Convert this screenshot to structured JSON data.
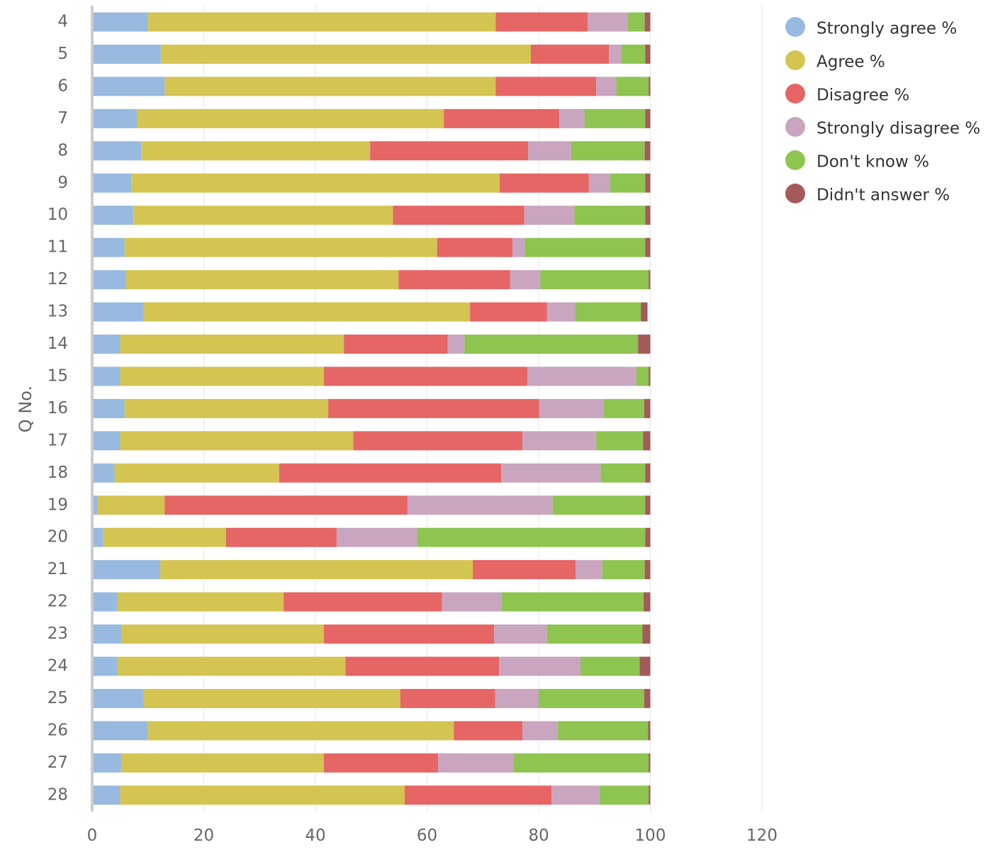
{
  "chart_data": {
    "type": "bar",
    "orientation": "horizontal",
    "stacked": true,
    "ylabel": "Q No.",
    "xlabel": "",
    "xlim": [
      0,
      120
    ],
    "x_ticks": [
      "0",
      "20",
      "40",
      "60",
      "80",
      "100",
      "120"
    ],
    "grid": true,
    "legend_position": "top-right",
    "categories": [
      "4",
      "5",
      "6",
      "7",
      "8",
      "9",
      "10",
      "11",
      "12",
      "13",
      "14",
      "15",
      "16",
      "17",
      "18",
      "19",
      "20",
      "21",
      "22",
      "23",
      "24",
      "25",
      "26",
      "27",
      "28"
    ],
    "series": [
      {
        "name": "Strongly agree %",
        "color": "#98b9e0",
        "values": [
          10,
          12.3,
          13,
          8,
          8.8,
          7,
          7.4,
          5.8,
          6.1,
          9.2,
          5,
          5,
          5.8,
          5,
          4,
          1,
          2,
          12.2,
          4.5,
          5.2,
          4.5,
          9.2,
          10,
          5.2,
          5
        ]
      },
      {
        "name": "Agree %",
        "color": "#d4c452",
        "values": [
          62.3,
          66.3,
          59.3,
          55,
          41,
          66,
          46.5,
          56,
          48.8,
          58.5,
          40.1,
          36.5,
          36.5,
          41.8,
          29.5,
          12,
          22,
          56,
          29.8,
          36.3,
          40.9,
          46,
          54.8,
          36.3,
          51
        ]
      },
      {
        "name": "Disagree %",
        "color": "#e66565",
        "values": [
          16.5,
          14,
          18,
          20.7,
          28.3,
          16,
          23.5,
          13.5,
          20,
          13.8,
          18.6,
          36.5,
          37.8,
          30.3,
          39.8,
          43.5,
          19.8,
          18.4,
          28.4,
          30.5,
          27.5,
          17,
          12.3,
          20.5,
          26.3
        ]
      },
      {
        "name": "Strongly disagree %",
        "color": "#c9a5bf",
        "values": [
          7.2,
          2.2,
          3.6,
          4.5,
          7.7,
          3.8,
          9,
          2.2,
          5.4,
          5,
          3,
          19.5,
          11.5,
          13.2,
          17.8,
          26,
          14.4,
          4.8,
          10.6,
          9.5,
          14.6,
          7.8,
          6.3,
          13.5,
          8.6
        ]
      },
      {
        "name": "Don't know %",
        "color": "#8ec450",
        "values": [
          3,
          4.3,
          5.8,
          10.9,
          13.2,
          6.3,
          12.7,
          21.6,
          19.4,
          11.8,
          31.1,
          2.2,
          7.3,
          8.4,
          8,
          16.6,
          40.9,
          7.6,
          25.5,
          17.1,
          10.6,
          18.9,
          16.2,
          24.2,
          8.8
        ]
      },
      {
        "name": "Didn't answer %",
        "color": "#a45a5a",
        "values": [
          1,
          0.9,
          0.3,
          0.9,
          1,
          0.9,
          0.9,
          0.9,
          0.3,
          1.2,
          2.2,
          0.3,
          1.1,
          1.3,
          0.9,
          0.9,
          0.9,
          1,
          1.2,
          1.4,
          1.9,
          1.1,
          0.4,
          0.3,
          0.3
        ]
      }
    ]
  }
}
